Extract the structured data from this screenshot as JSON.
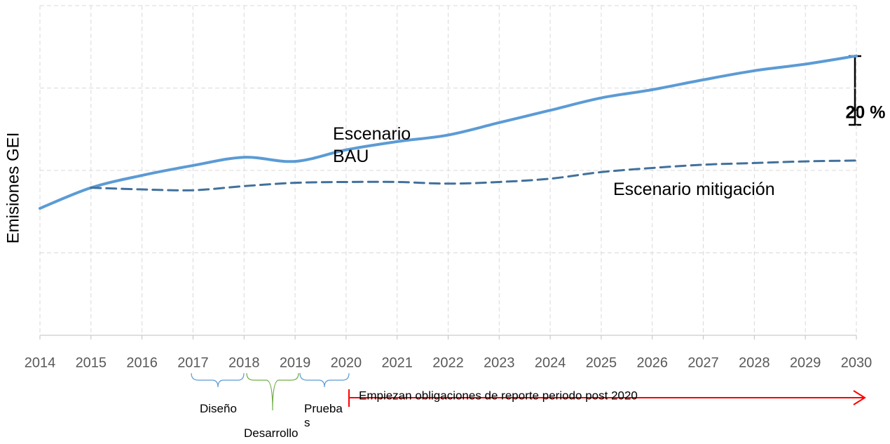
{
  "chart_data": {
    "type": "line",
    "y_label": "Emisiones GEI",
    "x": [
      2014,
      2015,
      2016,
      2017,
      2018,
      2019,
      2020,
      2021,
      2022,
      2023,
      2024,
      2025,
      2026,
      2027,
      2028,
      2029,
      2030
    ],
    "xlim": [
      2014,
      2030
    ],
    "ylim": [
      0,
      4
    ],
    "ygrid": [
      1,
      2,
      3,
      4
    ],
    "grid": true,
    "series": [
      {
        "name": "Escenario BAU",
        "color": "#5b9bd5",
        "dash": false,
        "values": [
          1.54,
          1.79,
          1.94,
          2.06,
          2.16,
          2.11,
          2.25,
          2.35,
          2.43,
          2.58,
          2.73,
          2.88,
          2.98,
          3.1,
          3.21,
          3.29,
          3.39
        ]
      },
      {
        "name": "Escenario mitigación",
        "color": "#41719c",
        "dash": true,
        "values": [
          null,
          1.79,
          1.77,
          1.76,
          1.81,
          1.85,
          1.86,
          1.86,
          1.84,
          1.86,
          1.9,
          1.98,
          2.03,
          2.07,
          2.09,
          2.11,
          2.12
        ]
      }
    ],
    "reduction_label": "20 %",
    "phases": [
      "Diseño",
      "Desarrollo",
      "Pruebas"
    ],
    "arrow_label": "Empiezan obligaciones de reporte periodo post 2020"
  }
}
